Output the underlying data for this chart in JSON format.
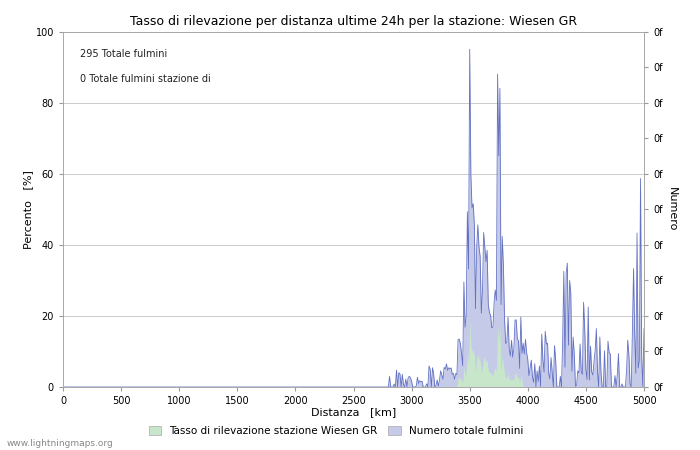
{
  "title": "Tasso di rilevazione per distanza ultime 24h per la stazione: Wiesen GR",
  "xlabel": "Distanza   [km]",
  "ylabel_left": "Percento   [%]",
  "ylabel_right": "Numero",
  "annotation_line1": "295 Totale fulmini",
  "annotation_line2": "0 Totale fulmini stazione di",
  "legend_label1": "Tasso di rilevazione stazione Wiesen GR",
  "legend_label2": "Numero totale fulmini",
  "watermark": "www.lightningmaps.org",
  "xlim": [
    0,
    5000
  ],
  "ylim": [
    0,
    100
  ],
  "xticks": [
    0,
    500,
    1000,
    1500,
    2000,
    2500,
    3000,
    3500,
    4000,
    4500,
    5000
  ],
  "yticks_left": [
    0,
    20,
    40,
    60,
    80,
    100
  ],
  "right_tick_positions": [
    0,
    10,
    20,
    30,
    40,
    50,
    60,
    70,
    80,
    90,
    100
  ],
  "right_tick_labels": [
    "0f",
    "0f",
    "0f",
    "0f",
    "0f",
    "0f",
    "0f",
    "0f",
    "0f",
    "0f",
    "0f"
  ],
  "bg_color": "#ffffff",
  "grid_color": "#cccccc",
  "fill_color_green": "#c8e6c9",
  "fill_color_blue": "#c5cae9",
  "line_color": "#5c6bc0",
  "title_fontsize": 9,
  "label_fontsize": 8,
  "tick_fontsize": 7,
  "annotation_fontsize": 7
}
